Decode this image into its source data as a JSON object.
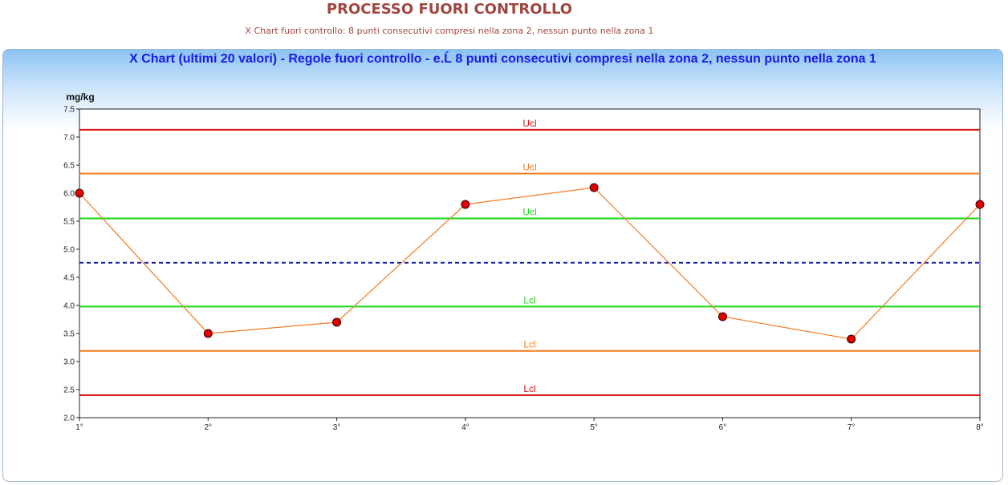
{
  "header": {
    "title": "PROCESSO FUORI CONTROLLO",
    "subtitle": "X Chart fuori controllo: 8 punti consecutivi compresi nella zona 2, nessun punto nella zona 1"
  },
  "chart_data": {
    "type": "line",
    "title": "X Chart (ultimi 20 valori) - Regole fuori controllo - e.\u0000 8 punti consecutivi compresi nella zona 2, nessun punto nella zona 1",
    "ylabel": "mg/kg",
    "xlabel": "",
    "ylim": [
      2.0,
      7.5
    ],
    "yticks": [
      "2.0",
      "2.5",
      "3.0",
      "3.5",
      "4.0",
      "4.5",
      "5.0",
      "5.5",
      "6.0",
      "6.5",
      "7.0",
      "7.5"
    ],
    "categories": [
      "1°",
      "2°",
      "3°",
      "4°",
      "5°",
      "6°",
      "7°",
      "8°"
    ],
    "values": [
      6.0,
      3.5,
      3.7,
      5.8,
      6.1,
      3.8,
      3.4,
      5.8
    ],
    "series_color": "#f57c1f",
    "marker_color": "#e00000",
    "center_line": {
      "value": 4.76,
      "color": "#1a1aa6"
    },
    "limit_lines": [
      {
        "label": "Ucl",
        "value": 7.13,
        "color": "#e01010"
      },
      {
        "label": "Ucl",
        "value": 6.35,
        "color": "#f57c1f"
      },
      {
        "label": "Ucl",
        "value": 5.55,
        "color": "#1ad81a"
      },
      {
        "label": "Lcl",
        "value": 3.98,
        "color": "#1ad81a"
      },
      {
        "label": "Lcl",
        "value": 3.19,
        "color": "#f57c1f"
      },
      {
        "label": "Lcl",
        "value": 2.4,
        "color": "#e01010"
      }
    ],
    "grid": false
  }
}
